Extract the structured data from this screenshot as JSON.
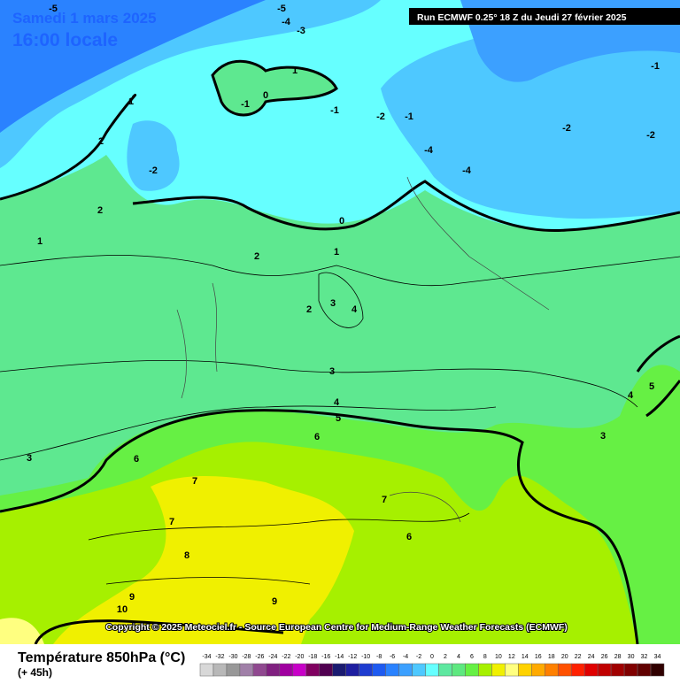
{
  "header": {
    "date": "Samedi 1 mars 2025",
    "time": "16:00 locale",
    "run": "Run ECMWF 0.25° 18 Z du Jeudi 27 février 2025"
  },
  "copyright": "Copyright © 2025 Meteociel.fr - Source European Centre for Medium-Range Weather Forecasts (ECMWF)",
  "footer": {
    "title": "Température 850hPa (°C)",
    "lead": "(+ 45h)"
  },
  "contour_labels": [
    -5,
    -5,
    -4,
    -3,
    -1,
    1,
    1,
    0,
    -1,
    -1,
    -2,
    -1,
    -2,
    -2,
    2,
    -2,
    -4,
    -4,
    2,
    0,
    1,
    1,
    2,
    2,
    3,
    4,
    3,
    4,
    5,
    6,
    4,
    5,
    3,
    3,
    6,
    7,
    7,
    7,
    6,
    8,
    9,
    9,
    10
  ],
  "scale": [
    {
      "value": -34,
      "color": "#d8d8d8"
    },
    {
      "value": -32,
      "color": "#b8b8b8"
    },
    {
      "value": -30,
      "color": "#989898"
    },
    {
      "value": -28,
      "color": "#a080a8"
    },
    {
      "value": -26,
      "color": "#904890"
    },
    {
      "value": -24,
      "color": "#802080"
    },
    {
      "value": -22,
      "color": "#a000a0"
    },
    {
      "value": -20,
      "color": "#c800c8"
    },
    {
      "value": -18,
      "color": "#800060"
    },
    {
      "value": -16,
      "color": "#500050"
    },
    {
      "value": -14,
      "color": "#1a1a70"
    },
    {
      "value": -12,
      "color": "#1e1ea0"
    },
    {
      "value": -10,
      "color": "#1e3cd0"
    },
    {
      "value": -8,
      "color": "#1e5af0"
    },
    {
      "value": -6,
      "color": "#2a82ff"
    },
    {
      "value": -4,
      "color": "#3ca0ff"
    },
    {
      "value": -2,
      "color": "#4ec8ff"
    },
    {
      "value": 0,
      "color": "#66ffff"
    },
    {
      "value": 2,
      "color": "#5ee8a0"
    },
    {
      "value": 4,
      "color": "#5ee880"
    },
    {
      "value": 6,
      "color": "#66f044"
    },
    {
      "value": 8,
      "color": "#a6f000"
    },
    {
      "value": 10,
      "color": "#f0f000"
    },
    {
      "value": 12,
      "color": "#ffff80"
    },
    {
      "value": 14,
      "color": "#ffd200"
    },
    {
      "value": 16,
      "color": "#ffaa00"
    },
    {
      "value": 18,
      "color": "#ff8000"
    },
    {
      "value": 20,
      "color": "#ff5000"
    },
    {
      "value": 22,
      "color": "#ff2000"
    },
    {
      "value": 24,
      "color": "#e00000"
    },
    {
      "value": 26,
      "color": "#c00000"
    },
    {
      "value": 28,
      "color": "#a00000"
    },
    {
      "value": 30,
      "color": "#800000"
    },
    {
      "value": 32,
      "color": "#600000"
    },
    {
      "value": 34,
      "color": "#300000"
    }
  ]
}
